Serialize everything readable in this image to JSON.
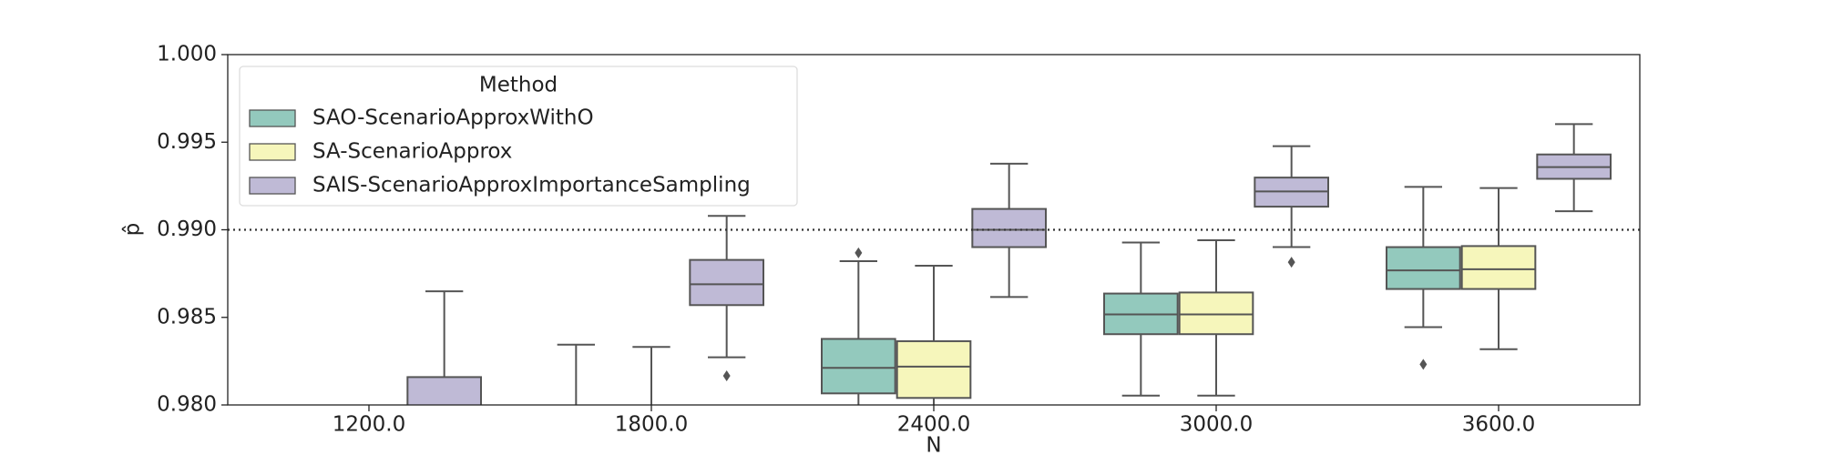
{
  "chart_data": {
    "type": "box",
    "x_label": "N",
    "y_label": "p̂",
    "categories": [
      "1200.0",
      "1800.0",
      "2400.0",
      "3000.0",
      "3600.0"
    ],
    "ylim": [
      0.98,
      1.0
    ],
    "yticks": [
      {
        "value": 0.98,
        "label": "0.980"
      },
      0.985,
      {
        "value": 0.99,
        "label": "0.990"
      },
      0.995,
      {
        "value": 1.0,
        "label": "1.000"
      }
    ],
    "hline": 0.99,
    "legend_title": "Method",
    "legend_position": "upper left",
    "series": [
      {
        "name": "SAO-ScenarioApproxWithO",
        "color": "#93c9bd",
        "whislo": [
          null,
          null,
          null,
          0.98053,
          0.98444
        ],
        "q1": [
          null,
          null,
          0.98066,
          0.98404,
          0.98662
        ],
        "med": [
          null,
          null,
          0.98212,
          0.98517,
          0.98768
        ],
        "q3": [
          null,
          null,
          0.98377,
          0.98636,
          0.98901
        ],
        "whishi": [
          null,
          0.98344,
          0.98821,
          0.98927,
          0.99245
        ],
        "fliers": [
          [],
          [],
          [
            0.98868
          ],
          [],
          [
            0.98232
          ]
        ]
      },
      {
        "name": "SA-ScenarioApprox",
        "color": "#f6f6bb",
        "whislo": [
          null,
          null,
          null,
          0.98053,
          0.98318
        ],
        "q1": [
          null,
          null,
          0.9804,
          0.98404,
          0.98662
        ],
        "med": [
          null,
          null,
          0.98219,
          0.98517,
          0.98775
        ],
        "q3": [
          null,
          null,
          0.98364,
          0.98642,
          0.98907
        ],
        "whishi": [
          null,
          0.98331,
          0.98795,
          0.9894,
          0.99238
        ],
        "fliers": [
          [],
          [],
          [],
          [],
          []
        ]
      },
      {
        "name": "SAIS-ScenarioApproxImportanceSampling",
        "color": "#bfbad6",
        "whislo": [
          null,
          0.98272,
          0.98616,
          0.98901,
          0.99106
        ],
        "q1": [
          null,
          0.9857,
          0.98901,
          0.99132,
          0.99291
        ],
        "med": [
          null,
          0.98689,
          0.99,
          0.99219,
          0.99358
        ],
        "q3": [
          0.98159,
          0.98828,
          0.99119,
          0.99298,
          0.9943
        ],
        "whishi": [
          0.98649,
          0.99079,
          0.99377,
          0.99477,
          0.99603
        ],
        "fliers": [
          [],
          [
            0.98166
          ],
          [],
          [
            0.98815
          ],
          []
        ]
      }
    ]
  }
}
